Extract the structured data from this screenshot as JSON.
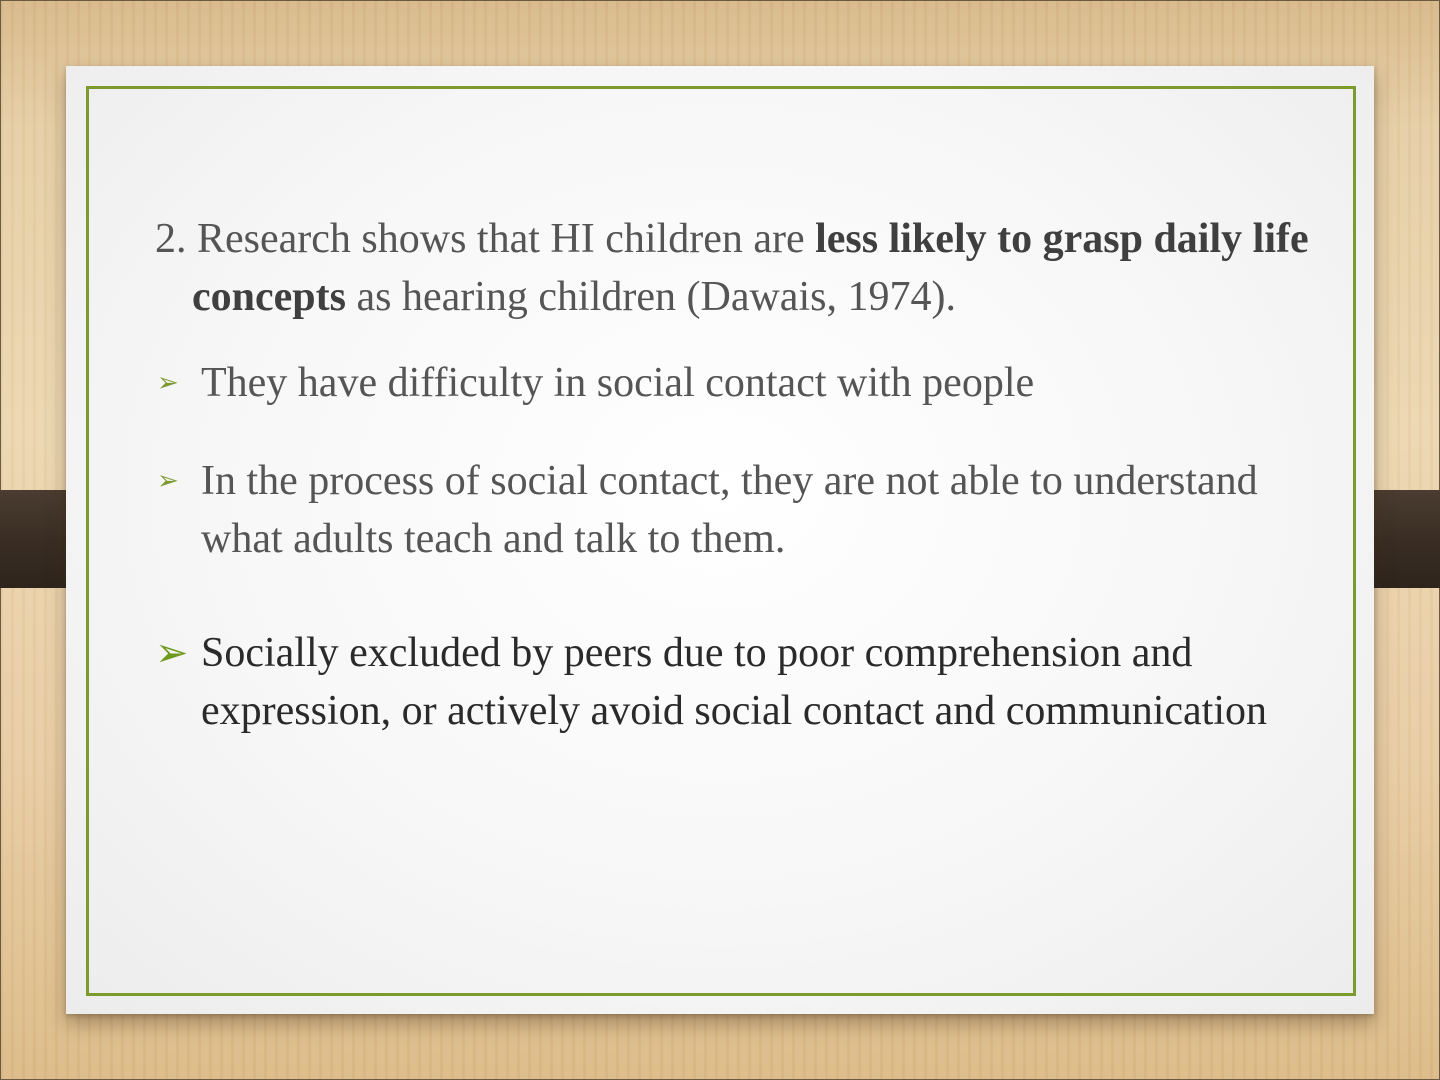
{
  "slide": {
    "intro": {
      "pre": "2. Research shows that HI children are ",
      "bold1": "less likely to grasp daily life concepts",
      "post": " as hearing children (Dawais, 1974)."
    },
    "bullets": [
      {
        "text": "They have difficulty in social contact with people"
      },
      {
        "text": "In the process of social contact, they are not able to understand what adults teach and talk to them."
      },
      {
        "text": "Socially excluded by peers due to poor comprehension and expression, or actively avoid social contact and communication"
      }
    ],
    "bullet_icon": "arrowhead-bullet-icon",
    "colors": {
      "accent": "#7c9a2e",
      "text": "#555555",
      "text_emphasis": "#2a2a2a",
      "background_wood": "#e6cfa6",
      "strap": "#3a2e24"
    }
  }
}
